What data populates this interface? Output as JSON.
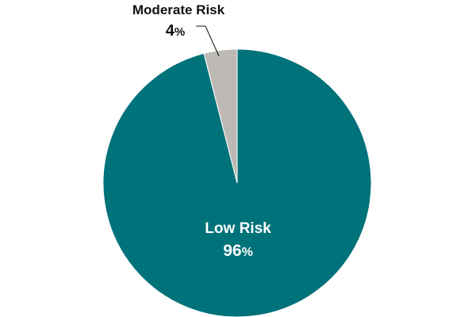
{
  "chart_data": {
    "type": "pie",
    "title": "",
    "slices": [
      {
        "name": "Low Risk",
        "value": 96,
        "label": "96",
        "unit": "%",
        "color": "#00727A"
      },
      {
        "name": "Moderate Risk",
        "value": 4,
        "label": "4",
        "unit": "%",
        "color": "#BDBAB6"
      }
    ],
    "label_colors": {
      "inside": "#ffffff",
      "outside": "#111111"
    },
    "legend": "none",
    "grid": false
  }
}
